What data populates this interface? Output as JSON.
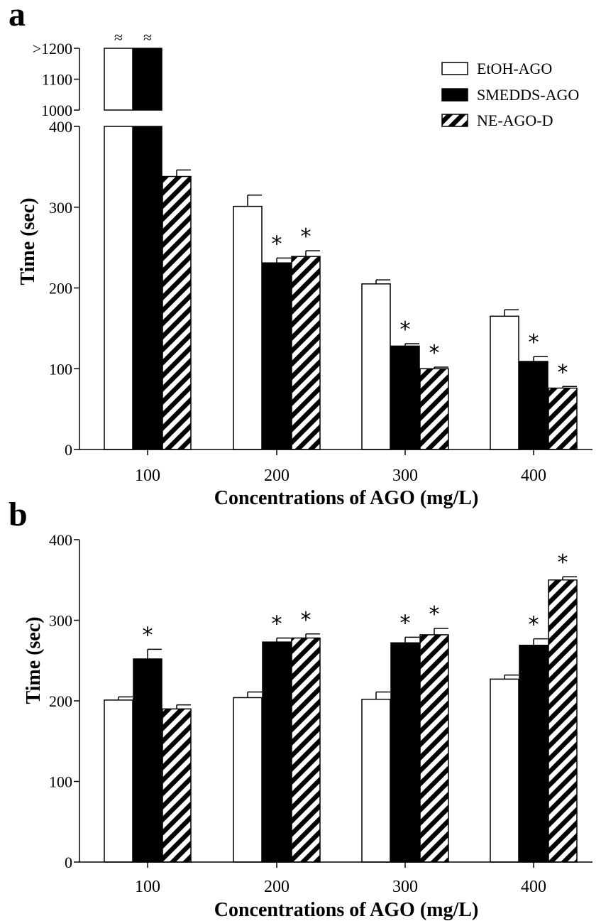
{
  "chart_data": [
    {
      "panel": "a",
      "type": "bar",
      "categories": [
        "100",
        "200",
        "300",
        "400"
      ],
      "xlabel": "Concentrations of AGO (mg/L)",
      "ylabel": "Time (sec)",
      "broken_axis": true,
      "ylim_lower": [
        0,
        400
      ],
      "ylim_upper": [
        1000,
        1200
      ],
      "yticks_lower": [
        "0",
        "100",
        "200",
        "300",
        "400"
      ],
      "yticks_upper": [
        "1000",
        "1100",
        ">1200"
      ],
      "break_symbol": "≈",
      "grid": false,
      "legend_position": "top-right",
      "series": [
        {
          "name": "EtOH-AGO",
          "pattern": "open",
          "values": [
            1200,
            301,
            205,
            165
          ],
          "errors": [
            0,
            14,
            5,
            8
          ],
          "stars": [
            false,
            false,
            false,
            false
          ],
          "truncated": [
            true,
            false,
            false,
            false
          ]
        },
        {
          "name": "SMEDDS-AGO",
          "pattern": "solid",
          "values": [
            1200,
            231,
            128,
            109
          ],
          "errors": [
            0,
            6,
            3,
            6
          ],
          "stars": [
            false,
            true,
            true,
            true
          ],
          "truncated": [
            true,
            false,
            false,
            false
          ]
        },
        {
          "name": "NE-AGO-D",
          "pattern": "hatched",
          "values": [
            338,
            239,
            100,
            76
          ],
          "errors": [
            8,
            7,
            2,
            2
          ],
          "stars": [
            false,
            true,
            true,
            true
          ],
          "truncated": [
            false,
            false,
            false,
            false
          ]
        }
      ]
    },
    {
      "panel": "b",
      "type": "bar",
      "categories": [
        "100",
        "200",
        "300",
        "400"
      ],
      "xlabel": "Concentrations of AGO (mg/L)",
      "ylabel": "Time (sec)",
      "ylim": [
        0,
        400
      ],
      "yticks": [
        "0",
        "100",
        "200",
        "300",
        "400"
      ],
      "grid": false,
      "series": [
        {
          "name": "EtOH-AGO",
          "pattern": "open",
          "values": [
            201,
            204,
            202,
            227
          ],
          "errors": [
            4,
            7,
            9,
            5
          ],
          "stars": [
            false,
            false,
            false,
            false
          ]
        },
        {
          "name": "SMEDDS-AGO",
          "pattern": "solid",
          "values": [
            252,
            273,
            272,
            269
          ],
          "errors": [
            12,
            5,
            7,
            8
          ],
          "stars": [
            true,
            true,
            true,
            true
          ]
        },
        {
          "name": "NE-AGO-D",
          "pattern": "hatched",
          "values": [
            190,
            278,
            282,
            350
          ],
          "errors": [
            5,
            5,
            8,
            4
          ],
          "stars": [
            false,
            true,
            true,
            true
          ]
        }
      ]
    }
  ],
  "colors": {
    "solid": "#000000",
    "open": "#ffffff",
    "stroke": "#000000"
  }
}
